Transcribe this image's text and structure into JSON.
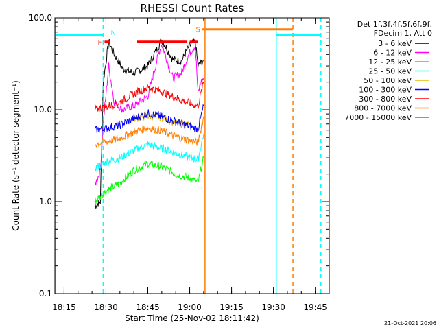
{
  "chart_data": {
    "type": "line",
    "title": "RHESSI Count Rates",
    "xlabel": "Start Time (25-Nov-02 18:11:42)",
    "ylabel": "Count Rate (s⁻¹ detector segment⁻¹)",
    "y_scale": "log",
    "ylim": [
      0.1,
      100
    ],
    "xlim": [
      "18:11:42",
      "19:50:00"
    ],
    "y_ticks": [
      {
        "value": 0.1,
        "label": "0.1"
      },
      {
        "value": 1,
        "label": "1.0"
      },
      {
        "value": 10,
        "label": "10.0"
      },
      {
        "value": 100,
        "label": "100.0"
      }
    ],
    "x_ticks": [
      {
        "value": "18:15",
        "label": "18:15"
      },
      {
        "value": "18:30",
        "label": "18:30"
      },
      {
        "value": "18:45",
        "label": "18:45"
      },
      {
        "value": "19:00",
        "label": "19:00"
      },
      {
        "value": "19:15",
        "label": "19:15"
      },
      {
        "value": "19:30",
        "label": "19:30"
      },
      {
        "value": "19:45",
        "label": "19:45"
      }
    ],
    "legend_header": [
      "Det 1f,3f,4f,5f,6f,9f,",
      "FDecim 1, Att 0"
    ],
    "legend_position": "right",
    "series": [
      {
        "name": "3 - 6 keV",
        "color": "#000000",
        "x": [
          "18:26",
          "18:28",
          "18:29",
          "18:31",
          "18:33",
          "18:36",
          "18:40",
          "18:45",
          "18:49",
          "18:50",
          "18:54",
          "18:57",
          "19:00",
          "19:02",
          "19:03",
          "19:04",
          "19:05"
        ],
        "values": [
          0.9,
          1.0,
          20,
          55,
          40,
          28,
          25,
          30,
          50,
          58,
          35,
          34,
          50,
          55,
          30,
          32,
          35
        ]
      },
      {
        "name": "6 - 12 keV",
        "color": "#ff00ff",
        "x": [
          "18:26",
          "18:28",
          "18:29",
          "18:31",
          "18:33",
          "18:36",
          "18:40",
          "18:45",
          "18:49",
          "18:50",
          "18:54",
          "18:57",
          "19:00",
          "19:02",
          "19:03",
          "19:04",
          "19:05"
        ],
        "values": [
          1.5,
          2.2,
          7,
          30,
          12,
          10,
          11,
          14,
          42,
          52,
          22,
          25,
          42,
          50,
          15,
          20,
          22
        ]
      },
      {
        "name": "12 - 25 keV",
        "color": "#00ff00",
        "x": [
          "18:26",
          "18:30",
          "18:35",
          "18:40",
          "18:45",
          "18:50",
          "18:55",
          "19:00",
          "19:03",
          "19:05"
        ],
        "values": [
          1.0,
          1.3,
          1.6,
          2.2,
          2.6,
          2.4,
          2.0,
          1.8,
          1.6,
          3.0
        ]
      },
      {
        "name": "25 - 50 keV",
        "color": "#00ffff",
        "x": [
          "18:26",
          "18:30",
          "18:35",
          "18:40",
          "18:45",
          "18:50",
          "18:55",
          "19:00",
          "19:03",
          "19:05"
        ],
        "values": [
          2.3,
          2.7,
          3.0,
          3.6,
          4.2,
          3.8,
          3.4,
          3.0,
          2.9,
          5.5
        ]
      },
      {
        "name": "50 - 100 keV",
        "color": "#e6b800",
        "x": [
          "18:40",
          "18:45",
          "18:50",
          "18:55",
          "19:00"
        ],
        "values": [
          8.0,
          8.6,
          8.2,
          7.2,
          6.8
        ]
      },
      {
        "name": "100 - 300 keV",
        "color": "#0000ff",
        "x": [
          "18:26",
          "18:30",
          "18:35",
          "18:40",
          "18:45",
          "18:50",
          "18:55",
          "19:00",
          "19:03",
          "19:05"
        ],
        "values": [
          6.0,
          6.3,
          6.8,
          8.0,
          9.2,
          8.4,
          7.4,
          6.6,
          6.2,
          11.0
        ]
      },
      {
        "name": "300 - 800 keV",
        "color": "#ff0000",
        "x": [
          "18:26",
          "18:30",
          "18:35",
          "18:40",
          "18:45",
          "18:50",
          "18:55",
          "19:00",
          "19:03",
          "19:05"
        ],
        "values": [
          10.0,
          10.8,
          12.0,
          15.0,
          17.5,
          15.8,
          13.5,
          11.8,
          11.0,
          20.0
        ]
      },
      {
        "name": "800 - 7000 keV",
        "color": "#ff7f00",
        "x": [
          "18:26",
          "18:30",
          "18:35",
          "18:40",
          "18:45",
          "18:50",
          "18:55",
          "19:00",
          "19:03",
          "19:05"
        ],
        "values": [
          4.2,
          4.5,
          4.9,
          5.7,
          6.4,
          5.9,
          5.1,
          4.6,
          4.4,
          8.5
        ]
      },
      {
        "name": "7000 - 15000 keV",
        "color": "#808000",
        "x": [],
        "values": []
      }
    ],
    "annotations": {
      "attenuator": [
        {
          "x_start": "18:11:42",
          "x_end": "18:29",
          "value": 65
        },
        {
          "x_start": "19:31",
          "x_end": "19:47",
          "value": 65
        }
      ],
      "flare_flags": {
        "label": "F",
        "color": "#ff0000",
        "value": 55,
        "segments": [
          [
            "18:29:30",
            "18:31:30"
          ],
          [
            "18:41",
            "18:59"
          ],
          [
            "19:00",
            "19:03"
          ]
        ]
      },
      "night_flag": {
        "label": "N",
        "x": "18:30"
      },
      "saa_flag": {
        "label": "S",
        "x": "19:04:30",
        "x_end": "19:37",
        "value": 75
      },
      "vertical_lines": [
        {
          "x": "18:12",
          "color": "#00ffff",
          "style": "solid"
        },
        {
          "x": "18:29",
          "color": "#00ffff",
          "style": "dashed"
        },
        {
          "x": "19:05:30",
          "color": "#ff7f00",
          "style": "solid"
        },
        {
          "x": "19:31",
          "color": "#00ffff",
          "style": "solid"
        },
        {
          "x": "19:37",
          "color": "#ff7f00",
          "style": "dashed"
        },
        {
          "x": "19:47",
          "color": "#00ffff",
          "style": "dashed"
        }
      ]
    }
  },
  "footer": {
    "date_stamp": "21-Oct-2021 20:06"
  }
}
